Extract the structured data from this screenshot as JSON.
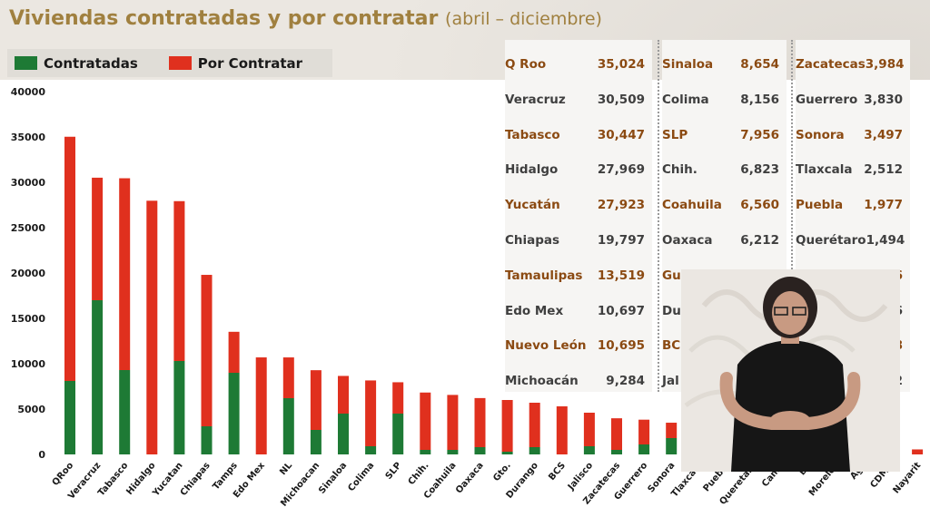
{
  "title": {
    "main": "Viviendas contratadas y por contratar",
    "sub": "(abril – diciembre)"
  },
  "legend": [
    {
      "label": "Contratadas",
      "color": "#1e7a35"
    },
    {
      "label": "Por Contratar",
      "color": "#e0301e"
    }
  ],
  "chart_data": {
    "type": "bar",
    "stacked": true,
    "ylim": [
      0,
      40000
    ],
    "yticks": [
      "0",
      "5000",
      "10000",
      "15000",
      "20000",
      "25000",
      "30000",
      "35000",
      "40000"
    ],
    "categories": [
      "QRoo",
      "Veracruz",
      "Tabasco",
      "Hidalgo",
      "Yucatan",
      "Chiapas",
      "Tamps",
      "Edo Mex",
      "NL",
      "Michoacan",
      "Sinaloa",
      "Colima",
      "SLP",
      "Chih.",
      "Coahuila",
      "Oaxaca",
      "Gto.",
      "Durango",
      "BCS",
      "Jalisco",
      "Zacatecas",
      "Guerrero",
      "Sonora",
      "Tlaxcala",
      "Puebla",
      "Queretaro",
      "Camp",
      "BC",
      "Morelos",
      "Ags",
      "CDMX",
      "Nayarit"
    ],
    "series": [
      {
        "name": "Contratadas",
        "color": "#1e7a35",
        "values": [
          8100,
          17000,
          9300,
          0,
          10300,
          3100,
          9000,
          0,
          6200,
          2700,
          4500,
          900,
          4500,
          500,
          500,
          800,
          300,
          800,
          0,
          900,
          500,
          1100,
          1800,
          0,
          0,
          0,
          0,
          0,
          0,
          0,
          0,
          0
        ]
      },
      {
        "name": "Por Contratar",
        "color": "#e0301e",
        "values": [
          26924,
          13509,
          21147,
          27969,
          17623,
          16697,
          4519,
          10697,
          4495,
          6584,
          4154,
          7256,
          3456,
          6323,
          6060,
          5412,
          5700,
          4900,
          5300,
          3700,
          3484,
          2730,
          1697,
          2512,
          1977,
          1494,
          1300,
          1186,
          900,
          876,
          600,
          552
        ]
      }
    ]
  },
  "table": [
    [
      {
        "name": "Q Roo",
        "value": "35,024",
        "hl": true
      },
      {
        "name": "Veracruz",
        "value": "30,509",
        "hl": false
      },
      {
        "name": "Tabasco",
        "value": "30,447",
        "hl": true
      },
      {
        "name": "Hidalgo",
        "value": "27,969",
        "hl": false
      },
      {
        "name": "Yucatán",
        "value": "27,923",
        "hl": true
      },
      {
        "name": "Chiapas",
        "value": "19,797",
        "hl": false
      },
      {
        "name": "Tamaulipas",
        "value": "13,519",
        "hl": true
      },
      {
        "name": "Edo Mex",
        "value": "10,697",
        "hl": false
      },
      {
        "name": "Nuevo León",
        "value": "10,695",
        "hl": true
      },
      {
        "name": "Michoacán",
        "value": "9,284",
        "hl": false
      }
    ],
    [
      {
        "name": "Sinaloa",
        "value": "8,654",
        "hl": true
      },
      {
        "name": "Colima",
        "value": "8,156",
        "hl": false
      },
      {
        "name": "SLP",
        "value": "7,956",
        "hl": true
      },
      {
        "name": "Chih.",
        "value": "6,823",
        "hl": false
      },
      {
        "name": "Coahuila",
        "value": "6,560",
        "hl": true
      },
      {
        "name": "Oaxaca",
        "value": "6,212",
        "hl": false
      },
      {
        "name": "Gu",
        "value": "",
        "hl": true
      },
      {
        "name": "Du",
        "value": "",
        "hl": false
      },
      {
        "name": "BC",
        "value": "",
        "hl": true
      },
      {
        "name": "Jal",
        "value": "",
        "hl": false
      }
    ],
    [
      {
        "name": "Zacatecas",
        "value": "3,984",
        "hl": true
      },
      {
        "name": "Guerrero",
        "value": "3,830",
        "hl": false
      },
      {
        "name": "Sonora",
        "value": "3,497",
        "hl": true
      },
      {
        "name": "Tlaxcala",
        "value": "2,512",
        "hl": false
      },
      {
        "name": "Puebla",
        "value": "1,977",
        "hl": true
      },
      {
        "name": "Querétaro",
        "value": "1,494",
        "hl": false
      },
      {
        "name": "",
        "value": "186",
        "hl": true
      },
      {
        "name": "",
        "value": "76",
        "hl": false
      },
      {
        "name": "",
        "value": "28",
        "hl": true
      },
      {
        "name": "",
        "value": "52",
        "hl": false
      }
    ]
  ]
}
